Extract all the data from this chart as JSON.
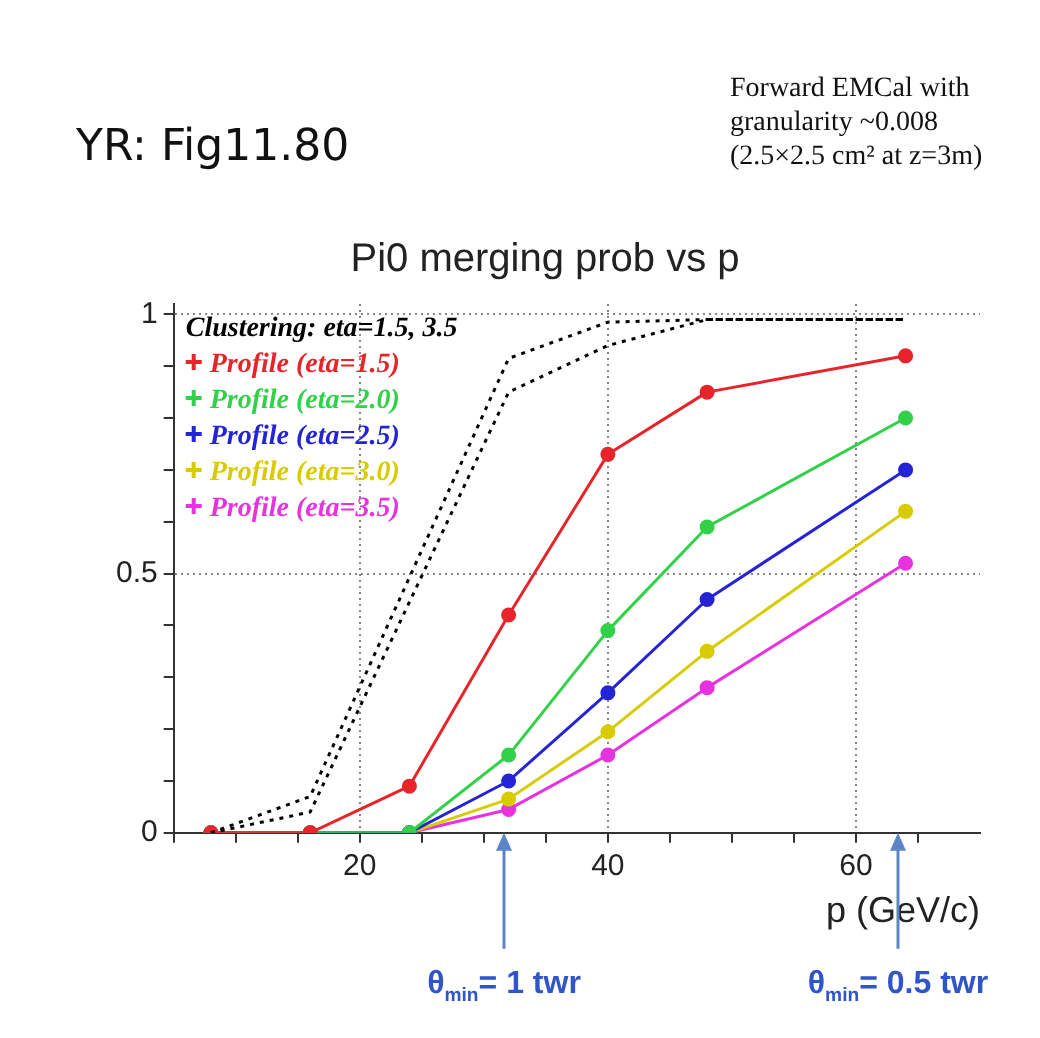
{
  "chart_data": {
    "type": "line",
    "title": "Pi0 merging prob vs p",
    "xlabel": "p (GeV/c)",
    "x": [
      8,
      16,
      24,
      32,
      40,
      48,
      64
    ],
    "series": [
      {
        "name": "Clustering: eta=1.5, 3.5",
        "color": "#000000",
        "line_style": "dotted",
        "marker": "none",
        "x": [
          8,
          16,
          32,
          40,
          48,
          64
        ],
        "values": [
          0,
          0.07,
          0.915,
          0.985,
          0.99,
          0.99
        ]
      },
      {
        "color": "#000000",
        "line_style": "dotted",
        "marker": "none",
        "x": [
          8,
          16,
          32,
          40,
          48,
          64
        ],
        "values": [
          0,
          0.04,
          0.85,
          0.94,
          0.99,
          0.99
        ]
      },
      {
        "name": "Profile (eta=1.5)",
        "color": "#e8242b",
        "values": [
          0,
          0,
          0.09,
          0.42,
          0.73,
          0.85,
          0.92
        ]
      },
      {
        "name": "Profile (eta=2.0)",
        "color": "#33d14a",
        "values": [
          0,
          0,
          0,
          0.15,
          0.39,
          0.59,
          0.8
        ]
      },
      {
        "name": "Profile (eta=2.5)",
        "color": "#2424d6",
        "values": [
          0,
          0,
          0,
          0.1,
          0.27,
          0.45,
          0.7
        ]
      },
      {
        "name": "Profile (eta=3.0)",
        "color": "#d8cc00",
        "values": [
          0,
          0,
          0,
          0.065,
          0.195,
          0.35,
          0.62
        ]
      },
      {
        "name": "Profile (eta=3.5)",
        "color": "#e832e0",
        "values": [
          0,
          0,
          0,
          0.045,
          0.15,
          0.28,
          0.52
        ]
      }
    ],
    "xlim": [
      5,
      70
    ],
    "xticks": [
      {
        "value": 5,
        "label": null
      },
      {
        "value": 10,
        "label": null
      },
      {
        "value": 15,
        "label": null
      },
      20,
      {
        "value": 25,
        "label": null
      },
      {
        "value": 30,
        "label": null
      },
      {
        "value": 35,
        "label": null
      },
      40,
      {
        "value": 45,
        "label": null
      },
      {
        "value": 50,
        "label": null
      },
      {
        "value": 55,
        "label": null
      },
      60,
      {
        "value": 65,
        "label": null
      }
    ],
    "ylim": [
      0,
      1.02
    ],
    "yticks": [
      0,
      {
        "value": 0.1,
        "label": null
      },
      {
        "value": 0.2,
        "label": null
      },
      {
        "value": 0.3,
        "label": null
      },
      {
        "value": 0.4,
        "label": null
      },
      0.5,
      {
        "value": 0.6,
        "label": null
      },
      {
        "value": 0.7,
        "label": null
      },
      {
        "value": 0.8,
        "label": null
      },
      {
        "value": 0.9,
        "label": null
      },
      1
    ],
    "grid": true,
    "legend": "top left",
    "marker": "circle",
    "line_style": "solid",
    "annotations": [
      "YR: Fig11.80",
      "Forward EMCal with granularity ~0.008 (2.5×2.5 cm² at z=3m)",
      "θ$_{min}$= 1 twr",
      "θ$_{min}$= 0.5 twr"
    ]
  }
}
